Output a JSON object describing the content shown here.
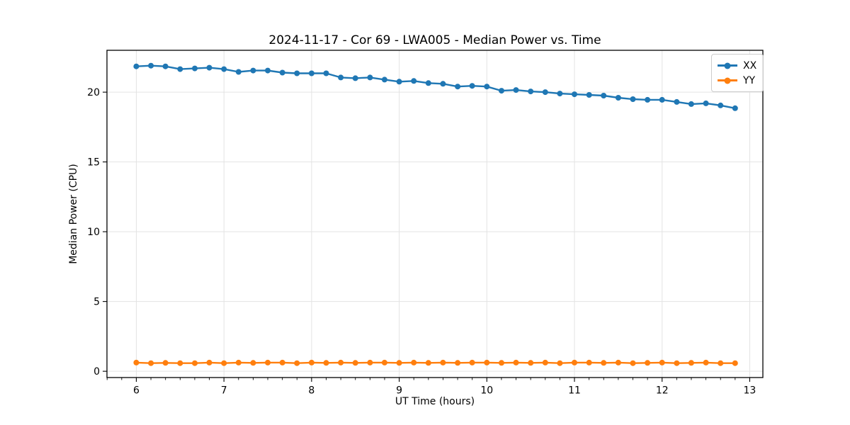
{
  "chart_data": {
    "type": "line",
    "title": "2024-11-17 - Cor 69 - LWA005 - Median Power vs. Time",
    "xlabel": "UT Time (hours)",
    "ylabel": "Median Power (CPU)",
    "xlim": [
      5.665,
      13.15
    ],
    "ylim": [
      -0.45,
      23.0
    ],
    "xticks": [
      6,
      7,
      8,
      9,
      10,
      11,
      12,
      13
    ],
    "yticks": [
      0,
      5,
      10,
      15,
      20
    ],
    "x_minor_tick_interval": 0.166667,
    "grid": true,
    "grid_color": "#e3e3e3",
    "spine_color": "#000000",
    "legend_position": "upper right",
    "x": [
      6.0,
      6.167,
      6.333,
      6.5,
      6.667,
      6.833,
      7.0,
      7.167,
      7.333,
      7.5,
      7.667,
      7.833,
      8.0,
      8.167,
      8.333,
      8.5,
      8.667,
      8.833,
      9.0,
      9.167,
      9.333,
      9.5,
      9.667,
      9.833,
      10.0,
      10.167,
      10.333,
      10.5,
      10.667,
      10.833,
      11.0,
      11.167,
      11.333,
      11.5,
      11.667,
      11.833,
      12.0,
      12.167,
      12.333,
      12.5,
      12.667,
      12.833
    ],
    "series": [
      {
        "name": "XX",
        "color": "#1f77b4",
        "values": [
          21.85,
          21.9,
          21.85,
          21.65,
          21.7,
          21.75,
          21.65,
          21.45,
          21.55,
          21.55,
          21.4,
          21.35,
          21.35,
          21.35,
          21.05,
          21.0,
          21.05,
          20.9,
          20.75,
          20.8,
          20.65,
          20.6,
          20.4,
          20.45,
          20.4,
          20.1,
          20.15,
          20.05,
          20.0,
          19.9,
          19.85,
          19.8,
          19.75,
          19.6,
          19.5,
          19.45,
          19.45,
          19.3,
          19.15,
          19.2,
          19.05,
          18.85
        ]
      },
      {
        "name": "YY",
        "color": "#ff7f0e",
        "values": [
          0.62,
          0.58,
          0.6,
          0.58,
          0.58,
          0.62,
          0.58,
          0.62,
          0.6,
          0.62,
          0.62,
          0.58,
          0.62,
          0.6,
          0.62,
          0.6,
          0.62,
          0.62,
          0.6,
          0.62,
          0.6,
          0.62,
          0.6,
          0.62,
          0.62,
          0.6,
          0.62,
          0.6,
          0.62,
          0.58,
          0.62,
          0.62,
          0.6,
          0.62,
          0.58,
          0.6,
          0.62,
          0.58,
          0.6,
          0.62,
          0.58,
          0.58
        ]
      }
    ]
  }
}
